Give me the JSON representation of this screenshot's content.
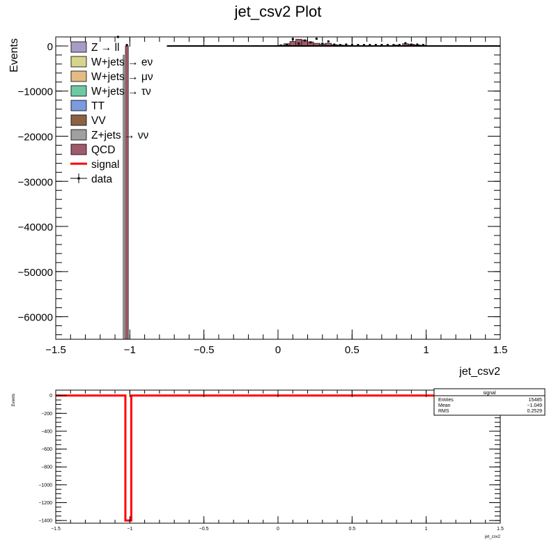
{
  "title": "jet_csv2 Plot",
  "chart_data": [
    {
      "type": "bar",
      "panel": "main",
      "xlabel": "jet_csv2",
      "ylabel": "Events",
      "xlim": [
        -1.5,
        1.5
      ],
      "ylim": [
        -65000,
        2000
      ],
      "x_ticks": [
        -1.5,
        -1,
        -0.5,
        0,
        0.5,
        1,
        1.5
      ],
      "x_tick_labels": [
        "−1.5",
        "−1",
        "−0.5",
        "0",
        "0.5",
        "1",
        "1.5"
      ],
      "y_ticks": [
        0,
        -10000,
        -20000,
        -30000,
        -40000,
        -50000,
        -60000
      ],
      "y_tick_labels": [
        "0",
        "−10000",
        "−20000",
        "−30000",
        "−40000",
        "−50000",
        "−60000"
      ],
      "legend": [
        {
          "label": "Z → ll",
          "kind": "box",
          "color": "#a99cc4"
        },
        {
          "label": "W+jets → eν",
          "kind": "box",
          "color": "#d6d58c"
        },
        {
          "label": "W+jets → μν",
          "kind": "box",
          "color": "#e3bb86"
        },
        {
          "label": "W+jets → τν",
          "kind": "box",
          "color": "#6ec9a0"
        },
        {
          "label": "TT",
          "kind": "box",
          "color": "#7b9be0"
        },
        {
          "label": "VV",
          "kind": "box",
          "color": "#8c6145"
        },
        {
          "label": "Z+jets → νν",
          "kind": "box",
          "color": "#a0a0a0"
        },
        {
          "label": "QCD",
          "kind": "box",
          "color": "#a05b6b"
        },
        {
          "label": "signal",
          "kind": "line",
          "color": "#ff0000"
        },
        {
          "label": "data",
          "kind": "marker",
          "color": "#000000"
        }
      ],
      "series": [
        {
          "name": "QCD",
          "color": "#a05b6b",
          "bins": [
            {
              "x": -1.02,
              "y": -65000
            },
            {
              "x": 0.02,
              "y": 150
            },
            {
              "x": 0.06,
              "y": 500
            },
            {
              "x": 0.1,
              "y": 1000
            },
            {
              "x": 0.14,
              "y": 1500
            },
            {
              "x": 0.18,
              "y": 1300
            },
            {
              "x": 0.22,
              "y": 900
            },
            {
              "x": 0.26,
              "y": 600
            },
            {
              "x": 0.3,
              "y": 450
            },
            {
              "x": 0.34,
              "y": 600
            },
            {
              "x": 0.38,
              "y": 300
            },
            {
              "x": 0.42,
              "y": 200
            },
            {
              "x": 0.46,
              "y": 150
            },
            {
              "x": 0.5,
              "y": 120
            },
            {
              "x": 0.6,
              "y": 100
            },
            {
              "x": 0.7,
              "y": 100
            },
            {
              "x": 0.8,
              "y": 200
            },
            {
              "x": 0.86,
              "y": 500
            },
            {
              "x": 0.9,
              "y": 400
            },
            {
              "x": 0.94,
              "y": 250
            },
            {
              "x": 0.98,
              "y": 150
            }
          ]
        },
        {
          "name": "data",
          "color": "#000000",
          "points": [
            {
              "x": 0.02,
              "y": 100
            },
            {
              "x": 0.06,
              "y": 300
            },
            {
              "x": 0.1,
              "y": 1500
            },
            {
              "x": 0.14,
              "y": 500
            },
            {
              "x": 0.18,
              "y": 1200
            },
            {
              "x": 0.22,
              "y": 800
            },
            {
              "x": 0.26,
              "y": 1600
            },
            {
              "x": 0.3,
              "y": 500
            },
            {
              "x": 0.34,
              "y": 1000
            },
            {
              "x": 0.38,
              "y": 300
            },
            {
              "x": 0.42,
              "y": 200
            },
            {
              "x": 0.46,
              "y": 300
            },
            {
              "x": 0.5,
              "y": 200
            },
            {
              "x": 0.54,
              "y": 200
            },
            {
              "x": 0.58,
              "y": 200
            },
            {
              "x": 0.62,
              "y": 200
            },
            {
              "x": 0.66,
              "y": 200
            },
            {
              "x": 0.7,
              "y": 200
            },
            {
              "x": 0.74,
              "y": 200
            },
            {
              "x": 0.78,
              "y": 200
            },
            {
              "x": 0.82,
              "y": 200
            },
            {
              "x": 0.86,
              "y": 600
            },
            {
              "x": 0.9,
              "y": 300
            },
            {
              "x": 0.94,
              "y": 300
            },
            {
              "x": 0.98,
              "y": 200
            },
            {
              "x": -1.08,
              "y": 2000
            },
            {
              "x": -1.02,
              "y": 200
            }
          ]
        }
      ],
      "baseline": {
        "from": -0.75,
        "to": 1.5,
        "y": 0
      }
    },
    {
      "type": "line",
      "panel": "ratio",
      "xlabel": "jet_csv2",
      "ylabel": "Events",
      "xlim": [
        -1.5,
        1.5
      ],
      "ylim": [
        -1430,
        60
      ],
      "x_ticks": [
        -1.5,
        -1,
        -0.5,
        0,
        0.5,
        1,
        1.5
      ],
      "x_tick_labels": [
        "−1.5",
        "−1",
        "−0.5",
        "0",
        "0.5",
        "1",
        "1.5"
      ],
      "y_ticks": [
        0,
        -200,
        -400,
        -600,
        -800,
        -1000,
        -1200,
        -1400
      ],
      "y_tick_labels": [
        "0",
        "−200",
        "−400",
        "−600",
        "−800",
        "−1000",
        "−1200",
        "−1400"
      ],
      "series": [
        {
          "name": "signal",
          "color": "#ff0000",
          "points": [
            {
              "x": -1.5,
              "y": 0
            },
            {
              "x": -1.03,
              "y": 0
            },
            {
              "x": -1.03,
              "y": -1400
            },
            {
              "x": -0.99,
              "y": -1400
            },
            {
              "x": -0.99,
              "y": 0
            },
            {
              "x": 1.5,
              "y": 0
            }
          ]
        }
      ],
      "stats_box": {
        "title": "signal",
        "rows": [
          {
            "label": "Entries",
            "value": "15485"
          },
          {
            "label": "Mean",
            "value": "−1.049"
          },
          {
            "label": "RMS",
            "value": "0.2529"
          }
        ]
      }
    }
  ]
}
